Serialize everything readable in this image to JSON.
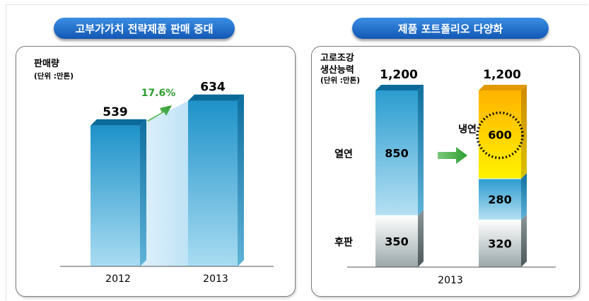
{
  "left_header": "고부가가치 전략제품 판매 증대",
  "right_header": "제품 포트폴리오 다양화",
  "colors": {
    "pill": "#1e6ccc",
    "blue_bar": "#4aa8d8",
    "gray_bar": "#b9c4c6",
    "yellow_bar": "#ffd400",
    "growth_green": "#2e9d2e"
  },
  "chart_data": [
    {
      "type": "bar",
      "title": "판매량",
      "unit_label": "(단위 :만톤)",
      "categories": [
        "2012",
        "2013"
      ],
      "values": [
        539,
        634
      ],
      "value_labels": [
        "539",
        "634"
      ],
      "growth_label": "17.6%",
      "grid": false
    },
    {
      "type": "bar",
      "stacked": true,
      "title": "고로조강\n생산능력",
      "unit_label": "(단위 :만톤)",
      "x_label": "2013",
      "columns": [
        {
          "total_label": "1,200",
          "segments": [
            {
              "name": "후판",
              "value": 350,
              "label": "350"
            },
            {
              "name": "열연",
              "value": 850,
              "label": "850"
            }
          ]
        },
        {
          "total_label": "1,200",
          "segments": [
            {
              "value": 320,
              "label": "320"
            },
            {
              "value": 280,
              "label": "280"
            },
            {
              "name": "냉연",
              "value": 600,
              "label": "600"
            }
          ]
        }
      ],
      "grid": false
    }
  ]
}
